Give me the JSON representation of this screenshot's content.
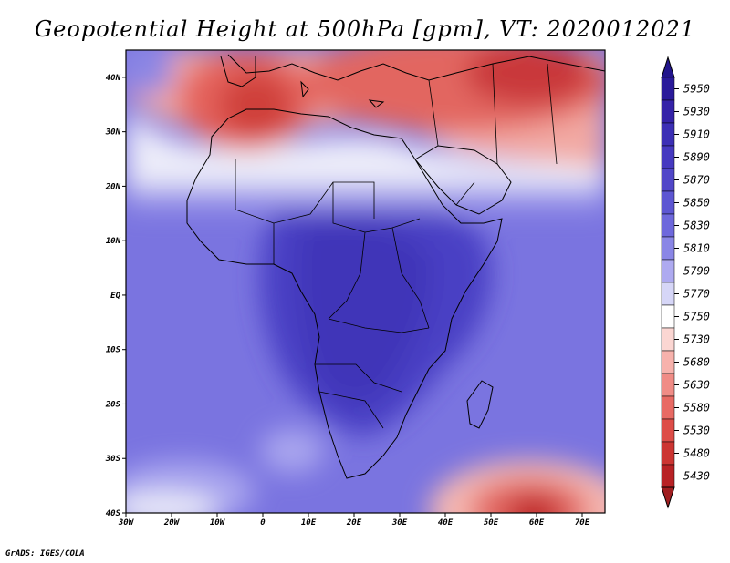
{
  "title": "Geopotential Height at 500hPa [gpm], VT: 2020012021",
  "credit": "GrADS: IGES/COLA",
  "map": {
    "lon_range": [
      -30,
      75
    ],
    "lat_range": [
      -40,
      45
    ],
    "lon_ticks": [
      {
        "value": -30,
        "label": "30W"
      },
      {
        "value": -20,
        "label": "20W"
      },
      {
        "value": -10,
        "label": "10W"
      },
      {
        "value": 0,
        "label": "0"
      },
      {
        "value": 10,
        "label": "10E"
      },
      {
        "value": 20,
        "label": "20E"
      },
      {
        "value": 30,
        "label": "30E"
      },
      {
        "value": 40,
        "label": "40E"
      },
      {
        "value": 50,
        "label": "50E"
      },
      {
        "value": 60,
        "label": "60E"
      },
      {
        "value": 70,
        "label": "70E"
      }
    ],
    "lat_ticks": [
      {
        "value": 40,
        "label": "40N"
      },
      {
        "value": 30,
        "label": "30N"
      },
      {
        "value": 20,
        "label": "20N"
      },
      {
        "value": 10,
        "label": "10N"
      },
      {
        "value": 0,
        "label": "EQ"
      },
      {
        "value": -10,
        "label": "10S"
      },
      {
        "value": -20,
        "label": "20S"
      },
      {
        "value": -30,
        "label": "30S"
      },
      {
        "value": -40,
        "label": "40S"
      }
    ]
  },
  "colorbar": {
    "levels": [
      {
        "label": "5950",
        "color": "#2a1a9a"
      },
      {
        "label": "5930",
        "color": "#3523a8"
      },
      {
        "label": "5910",
        "color": "#3c2fb5"
      },
      {
        "label": "5890",
        "color": "#4639c0"
      },
      {
        "label": "5870",
        "color": "#5147c8"
      },
      {
        "label": "5850",
        "color": "#5d56d2"
      },
      {
        "label": "5830",
        "color": "#6e68dc"
      },
      {
        "label": "5810",
        "color": "#8a86e6"
      },
      {
        "label": "5790",
        "color": "#aeaaf0"
      },
      {
        "label": "5770",
        "color": "#d6d6f7"
      },
      {
        "label": "5750",
        "color": "#ffffff"
      },
      {
        "label": "5730",
        "color": "#fbd6d2"
      },
      {
        "label": "5680",
        "color": "#f7b2ac"
      },
      {
        "label": "5630",
        "color": "#f08c86"
      },
      {
        "label": "5580",
        "color": "#e86a64"
      },
      {
        "label": "5530",
        "color": "#dd4d48"
      },
      {
        "label": "5480",
        "color": "#cc3532"
      },
      {
        "label": "5430",
        "color": "#b82225"
      }
    ],
    "top_color": "#22158c",
    "bottom_color": "#a01e20"
  }
}
